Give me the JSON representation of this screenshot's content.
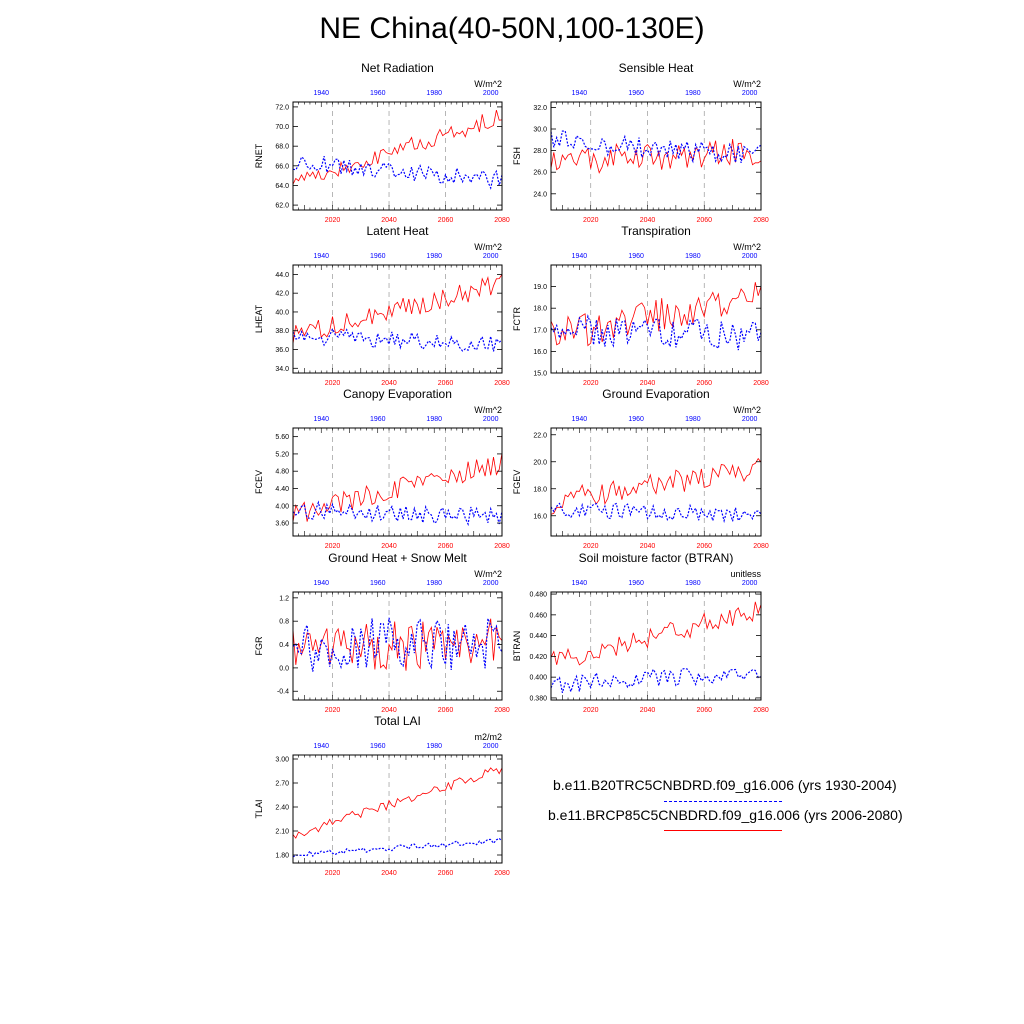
{
  "page_title": "NE China(40-50N,100-130E)",
  "colors": {
    "hist": "#0000ff",
    "future": "#ff0000",
    "grid": "#999999"
  },
  "legend": [
    {
      "label": "b.e11.B20TRC5CNBDRD.f09_g16.006 (yrs 1930-2004)",
      "color": "#0000ff",
      "style": "dashed"
    },
    {
      "label": "b.e11.BRCP85C5CNBDRD.f09_g16.006 (yrs 2006-2080)",
      "color": "#ff0000",
      "style": "solid"
    }
  ],
  "chart_data": [
    {
      "type": "line",
      "title": "Net Radiation",
      "units": "W/m^2",
      "ylabel": "RNET",
      "xlim_bottom": [
        2006,
        2080
      ],
      "xlim_top": [
        1930,
        2004
      ],
      "x_ticks_bottom": [
        "2020",
        "2040",
        "2060",
        "2080"
      ],
      "x_ticks_top": [
        "1940",
        "1960",
        "1980",
        "2000"
      ],
      "ylim": [
        61.5,
        72.5
      ],
      "y_ticks": [
        "62.0",
        "64.0",
        "66.0",
        "68.0",
        "70.0",
        "72.0"
      ],
      "series": [
        {
          "role": "future",
          "color": "#ff0000",
          "dash": "solid",
          "trend": [
            64.3,
            71.0
          ],
          "amp": 0.9,
          "seed": 11
        },
        {
          "role": "hist",
          "color": "#0000ff",
          "dash": "dotted",
          "trend": [
            66.5,
            64.5
          ],
          "amp": 0.9,
          "seed": 12
        }
      ]
    },
    {
      "type": "line",
      "title": "Sensible Heat",
      "units": "W/m^2",
      "ylabel": "FSH",
      "xlim_bottom": [
        2006,
        2080
      ],
      "xlim_top": [
        1930,
        2004
      ],
      "x_ticks_bottom": [
        "2020",
        "2040",
        "2060",
        "2080"
      ],
      "x_ticks_top": [
        "1940",
        "1960",
        "1980",
        "2000"
      ],
      "ylim": [
        22.5,
        32.5
      ],
      "y_ticks": [
        "24.0",
        "26.0",
        "28.0",
        "30.0",
        "32.0"
      ],
      "series": [
        {
          "role": "future",
          "color": "#ff0000",
          "dash": "solid",
          "trend": [
            27.0,
            28.0
          ],
          "amp": 1.3,
          "seed": 21
        },
        {
          "role": "hist",
          "color": "#0000ff",
          "dash": "dotted",
          "trend": [
            29.0,
            27.5
          ],
          "amp": 1.0,
          "seed": 22
        }
      ]
    },
    {
      "type": "line",
      "title": "Latent Heat",
      "units": "W/m^2",
      "ylabel": "LHEAT",
      "xlim_bottom": [
        2006,
        2080
      ],
      "xlim_top": [
        1930,
        2004
      ],
      "x_ticks_bottom": [
        "2020",
        "2040",
        "2060",
        "2080"
      ],
      "x_ticks_top": [
        "1940",
        "1960",
        "1980",
        "2000"
      ],
      "ylim": [
        33.5,
        45.0
      ],
      "y_ticks": [
        "34.0",
        "36.0",
        "38.0",
        "40.0",
        "42.0",
        "44.0"
      ],
      "series": [
        {
          "role": "future",
          "color": "#ff0000",
          "dash": "solid",
          "trend": [
            37.5,
            43.0
          ],
          "amp": 1.1,
          "seed": 31
        },
        {
          "role": "hist",
          "color": "#0000ff",
          "dash": "dotted",
          "trend": [
            37.5,
            36.5
          ],
          "amp": 0.9,
          "seed": 32
        }
      ]
    },
    {
      "type": "line",
      "title": "Transpiration",
      "units": "W/m^2",
      "ylabel": "FCTR",
      "xlim_bottom": [
        2006,
        2080
      ],
      "xlim_top": [
        1930,
        2004
      ],
      "x_ticks_bottom": [
        "2020",
        "2040",
        "2060",
        "2080"
      ],
      "x_ticks_top": [
        "1940",
        "1960",
        "1980",
        "2000"
      ],
      "ylim": [
        15.0,
        20.0
      ],
      "y_ticks": [
        "15.0",
        "16.0",
        "17.0",
        "18.0",
        "19.0"
      ],
      "series": [
        {
          "role": "future",
          "color": "#ff0000",
          "dash": "solid",
          "trend": [
            16.7,
            18.6
          ],
          "amp": 0.8,
          "seed": 41
        },
        {
          "role": "hist",
          "color": "#0000ff",
          "dash": "dotted",
          "trend": [
            17.0,
            16.7
          ],
          "amp": 0.7,
          "seed": 42
        }
      ]
    },
    {
      "type": "line",
      "title": "Canopy Evaporation",
      "units": "W/m^2",
      "ylabel": "FCEV",
      "xlim_bottom": [
        2006,
        2080
      ],
      "xlim_top": [
        1930,
        2004
      ],
      "x_ticks_bottom": [
        "2020",
        "2040",
        "2060",
        "2080"
      ],
      "x_ticks_top": [
        "1940",
        "1960",
        "1980",
        "2000"
      ],
      "ylim": [
        3.3,
        5.8
      ],
      "y_ticks": [
        "3.60",
        "4.00",
        "4.40",
        "4.80",
        "5.20",
        "5.60"
      ],
      "series": [
        {
          "role": "future",
          "color": "#ff0000",
          "dash": "solid",
          "trend": [
            3.8,
            5.0
          ],
          "amp": 0.25,
          "seed": 51
        },
        {
          "role": "hist",
          "color": "#0000ff",
          "dash": "dotted",
          "trend": [
            3.9,
            3.75
          ],
          "amp": 0.2,
          "seed": 52
        }
      ]
    },
    {
      "type": "line",
      "title": "Ground Evaporation",
      "units": "W/m^2",
      "ylabel": "FGEV",
      "xlim_bottom": [
        2006,
        2080
      ],
      "xlim_top": [
        1930,
        2004
      ],
      "x_ticks_bottom": [
        "2020",
        "2040",
        "2060",
        "2080"
      ],
      "x_ticks_top": [
        "1940",
        "1960",
        "1980",
        "2000"
      ],
      "ylim": [
        14.5,
        22.5
      ],
      "y_ticks": [
        "16.0",
        "18.0",
        "20.0",
        "22.0"
      ],
      "series": [
        {
          "role": "future",
          "color": "#ff0000",
          "dash": "solid",
          "trend": [
            17.0,
            19.5
          ],
          "amp": 0.9,
          "seed": 61
        },
        {
          "role": "hist",
          "color": "#0000ff",
          "dash": "dotted",
          "trend": [
            16.5,
            16.0
          ],
          "amp": 0.6,
          "seed": 62
        }
      ]
    },
    {
      "type": "line",
      "title": "Ground Heat + Snow Melt",
      "units": "W/m^2",
      "ylabel": "FGR",
      "xlim_bottom": [
        2006,
        2080
      ],
      "xlim_top": [
        1930,
        2004
      ],
      "x_ticks_bottom": [
        "2020",
        "2040",
        "2060",
        "2080"
      ],
      "x_ticks_top": [
        "1940",
        "1960",
        "1980",
        "2000"
      ],
      "ylim": [
        -0.55,
        1.3
      ],
      "y_ticks": [
        "-0.4",
        "0.0",
        "0.4",
        "0.8",
        "1.2"
      ],
      "series": [
        {
          "role": "future",
          "color": "#ff0000",
          "dash": "solid",
          "trend": [
            0.35,
            0.4
          ],
          "amp": 0.45,
          "seed": 71
        },
        {
          "role": "hist",
          "color": "#0000ff",
          "dash": "dotted",
          "trend": [
            0.4,
            0.35
          ],
          "amp": 0.5,
          "seed": 72
        }
      ]
    },
    {
      "type": "line",
      "title": "Soil moisture factor (BTRAN)",
      "units": "unitless",
      "ylabel": "BTRAN",
      "xlim_bottom": [
        2006,
        2080
      ],
      "xlim_top": [
        1930,
        2004
      ],
      "x_ticks_bottom": [
        "2020",
        "2040",
        "2060",
        "2080"
      ],
      "x_ticks_top": [
        "1940",
        "1960",
        "1980",
        "2000"
      ],
      "ylim": [
        0.378,
        0.482
      ],
      "y_ticks": [
        "0.380",
        "0.400",
        "0.420",
        "0.440",
        "0.460",
        "0.480"
      ],
      "series": [
        {
          "role": "future",
          "color": "#ff0000",
          "dash": "solid",
          "trend": [
            0.415,
            0.465
          ],
          "amp": 0.01,
          "seed": 81
        },
        {
          "role": "hist",
          "color": "#0000ff",
          "dash": "dotted",
          "trend": [
            0.393,
            0.405
          ],
          "amp": 0.009,
          "seed": 82
        }
      ]
    },
    {
      "type": "line",
      "title": "Total LAI",
      "units": "m2/m2",
      "ylabel": "TLAI",
      "xlim_bottom": [
        2006,
        2080
      ],
      "xlim_top": [
        1930,
        2004
      ],
      "x_ticks_bottom": [
        "2020",
        "2040",
        "2060",
        "2080"
      ],
      "x_ticks_top": [
        "1940",
        "1960",
        "1980",
        "2000"
      ],
      "ylim": [
        1.7,
        3.05
      ],
      "y_ticks": [
        "1.80",
        "2.10",
        "2.40",
        "2.70",
        "3.00"
      ],
      "series": [
        {
          "role": "future",
          "color": "#ff0000",
          "dash": "solid",
          "trend": [
            2.05,
            2.88
          ],
          "amp": 0.06,
          "seed": 91
        },
        {
          "role": "hist",
          "color": "#0000ff",
          "dash": "dotted",
          "trend": [
            1.8,
            1.98
          ],
          "amp": 0.035,
          "seed": 92
        }
      ]
    }
  ]
}
